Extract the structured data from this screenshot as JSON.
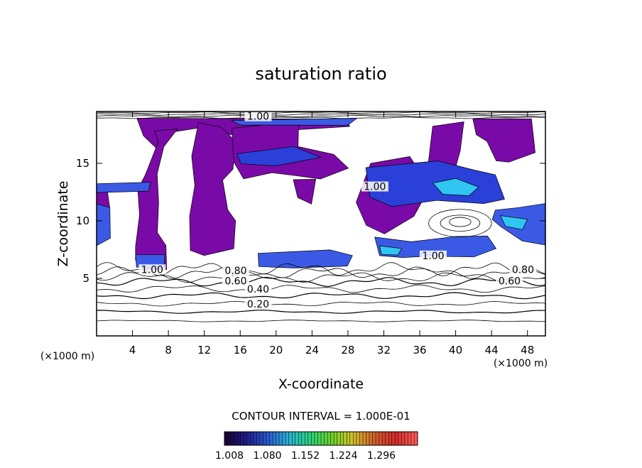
{
  "chart_data": {
    "type": "heatmap",
    "title": "saturation ratio",
    "xlabel": "X-coordinate",
    "ylabel": "Z-coordinate",
    "x_unit": "(×1000 m)",
    "y_unit": "(×1000 m)",
    "xlim": [
      0,
      50
    ],
    "ylim": [
      0,
      19.5
    ],
    "x_ticks": [
      4,
      8,
      12,
      16,
      20,
      24,
      28,
      32,
      36,
      40,
      44,
      48
    ],
    "y_ticks": [
      5,
      10,
      15
    ],
    "contour_interval_label": "CONTOUR INTERVAL = 1.000E-01",
    "contour_labels": [
      {
        "text": "0.20",
        "x": 18,
        "z": 2.6
      },
      {
        "text": "0.40",
        "x": 18,
        "z": 3.9
      },
      {
        "text": "0.60",
        "x": 15.5,
        "z": 4.6
      },
      {
        "text": "0.60",
        "x": 46,
        "z": 4.6
      },
      {
        "text": "0.80",
        "x": 15.5,
        "z": 5.5
      },
      {
        "text": "0.80",
        "x": 47.5,
        "z": 5.6
      },
      {
        "text": "1.00",
        "x": 6.2,
        "z": 5.6
      },
      {
        "text": "1.00",
        "x": 37.5,
        "z": 6.8
      },
      {
        "text": "1.00",
        "x": 31,
        "z": 12.8
      },
      {
        "text": "1.00",
        "x": 18,
        "z": 18.9
      }
    ],
    "colorbar": {
      "tick_labels": [
        "1.008",
        "1.080",
        "1.152",
        "1.224",
        "1.296"
      ],
      "colors": [
        "#1a0033",
        "#1e1e8c",
        "#2a5ad2",
        "#2ab4d2",
        "#2ad27a",
        "#6ad22a",
        "#d2c22a",
        "#d2622a",
        "#d22a2a",
        "#ff5a5a"
      ]
    },
    "fill_colors": {
      "purple": "#7a0aa8",
      "blue": "#3a5ae6",
      "cyan": "#30c6f2",
      "deep_blue": "#2a40d8"
    }
  }
}
